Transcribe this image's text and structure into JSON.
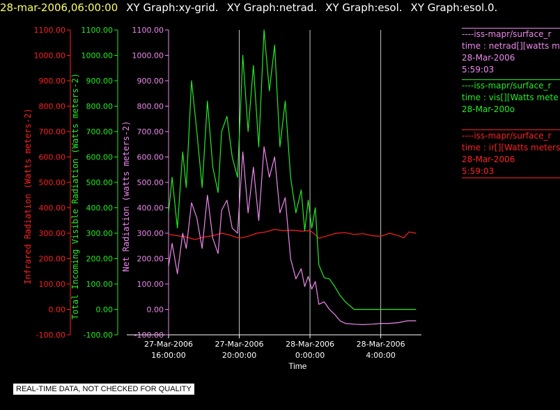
{
  "header": {
    "timestamp": "28-mar-2006,06:00:00",
    "graphs": [
      "XY Graph:xy-grid.",
      "XY Graph:netrad.",
      "XY Graph:esol.",
      "XY Graph:esol.0."
    ]
  },
  "notice": "REAL-TIME DATA, NOT CHECKED FOR QUALITY",
  "colors": {
    "ir": "#ff2020",
    "vis": "#22ee22",
    "net": "#ee88ee",
    "grid": "#c8c8c8",
    "axis": "#ffffff"
  },
  "legend": [
    {
      "lines": [
        "----iss-mapr/surface_r",
        "time : netrad[][watts m",
        "28-Mar-2006",
        "5:59:03"
      ],
      "color": "#ee88ee"
    },
    {
      "lines": [
        "----iss-mapr/surface_r",
        "time : vis[][Watts mete",
        "28-Mar-200o"
      ],
      "color": "#22ee22"
    },
    {
      "lines": [
        "----iss-mapr/surface_r",
        "time : ir[][Watts meters",
        "28-Mar-2006",
        "5:59:03"
      ],
      "color": "#ff2020"
    }
  ],
  "chart_data": {
    "type": "line",
    "xlabel": "Time",
    "x_unit": "hours since 27-Mar-2006 16:00",
    "xlim": [
      0,
      14.3
    ],
    "x_ticks": [
      {
        "x": 0,
        "line1": "27-Mar-2006",
        "line2": "16:00:00"
      },
      {
        "x": 4,
        "line1": "27-Mar-2006",
        "line2": "20:00:00"
      },
      {
        "x": 8,
        "line1": "28-Mar-2006",
        "line2": "0:00:00"
      },
      {
        "x": 12,
        "line1": "28-Mar-2006",
        "line2": "4:00:00"
      }
    ],
    "ylim": [
      -100,
      1100
    ],
    "y_ticks": [
      "-100.00",
      "0.00",
      "100.00",
      "200.00",
      "300.00",
      "400.00",
      "500.00",
      "600.00",
      "700.00",
      "800.00",
      "900.00",
      "1000.00",
      "1100.00"
    ],
    "axes": [
      {
        "label": "Infrared Radiation (Watts meters-2)",
        "color": "#ff2020"
      },
      {
        "label": "Total Incoming Visible Radiation (Watts meters-2)",
        "color": "#22ee22"
      },
      {
        "label": "Net Radiation (watts meters-2)",
        "color": "#ee88ee"
      }
    ],
    "grid": true,
    "series": [
      {
        "name": "ir",
        "color": "#ff2020",
        "x": [
          0,
          0.5,
          1,
          1.5,
          2,
          2.5,
          3,
          3.5,
          4,
          4.5,
          5,
          5.5,
          6,
          6.5,
          7,
          7.5,
          8,
          8.2,
          8.5,
          9,
          9.5,
          10,
          10.5,
          11,
          11.5,
          12,
          12.5,
          13,
          13.3,
          13.6,
          14
        ],
        "values": [
          295,
          290,
          285,
          275,
          285,
          290,
          300,
          292,
          280,
          288,
          300,
          305,
          315,
          310,
          312,
          308,
          310,
          300,
          280,
          290,
          300,
          302,
          295,
          298,
          290,
          288,
          300,
          290,
          282,
          305,
          300
        ]
      },
      {
        "name": "vis",
        "color": "#22ee22",
        "x": [
          0,
          0.2,
          0.5,
          0.8,
          1,
          1.3,
          1.6,
          1.9,
          2.2,
          2.5,
          2.8,
          3.0,
          3.3,
          3.6,
          3.9,
          4.2,
          4.5,
          4.8,
          5.1,
          5.4,
          5.7,
          6.0,
          6.3,
          6.6,
          6.9,
          7.2,
          7.5,
          7.7,
          7.9,
          8.1,
          8.3,
          8.5,
          8.8,
          9.1,
          9.4,
          9.7,
          10.0,
          10.5,
          11,
          11.5,
          12,
          12.5,
          13,
          13.5,
          14
        ],
        "values": [
          380,
          520,
          320,
          620,
          480,
          900,
          700,
          480,
          820,
          560,
          460,
          700,
          760,
          600,
          520,
          1000,
          700,
          960,
          640,
          1100,
          860,
          1040,
          640,
          820,
          520,
          380,
          470,
          310,
          430,
          320,
          400,
          175,
          125,
          120,
          90,
          55,
          30,
          0,
          0,
          0,
          0,
          0,
          0,
          0,
          0
        ]
      },
      {
        "name": "net",
        "color": "#ee88ee",
        "x": [
          0,
          0.2,
          0.5,
          0.8,
          1,
          1.3,
          1.6,
          1.9,
          2.2,
          2.5,
          2.8,
          3.0,
          3.3,
          3.6,
          3.9,
          4.2,
          4.5,
          4.8,
          5.1,
          5.4,
          5.7,
          6.0,
          6.3,
          6.6,
          6.9,
          7.2,
          7.5,
          7.7,
          7.9,
          8.1,
          8.3,
          8.5,
          8.8,
          9.1,
          9.4,
          9.7,
          10.0,
          10.5,
          11,
          11.5,
          12,
          12.5,
          13,
          13.5,
          14
        ],
        "values": [
          170,
          260,
          140,
          300,
          240,
          420,
          360,
          240,
          450,
          280,
          220,
          390,
          430,
          320,
          300,
          620,
          380,
          560,
          350,
          640,
          520,
          600,
          380,
          440,
          200,
          120,
          160,
          90,
          130,
          80,
          110,
          20,
          30,
          0,
          -20,
          -45,
          -55,
          -58,
          -60,
          -58,
          -55,
          -55,
          -52,
          -45,
          -45
        ]
      }
    ]
  }
}
